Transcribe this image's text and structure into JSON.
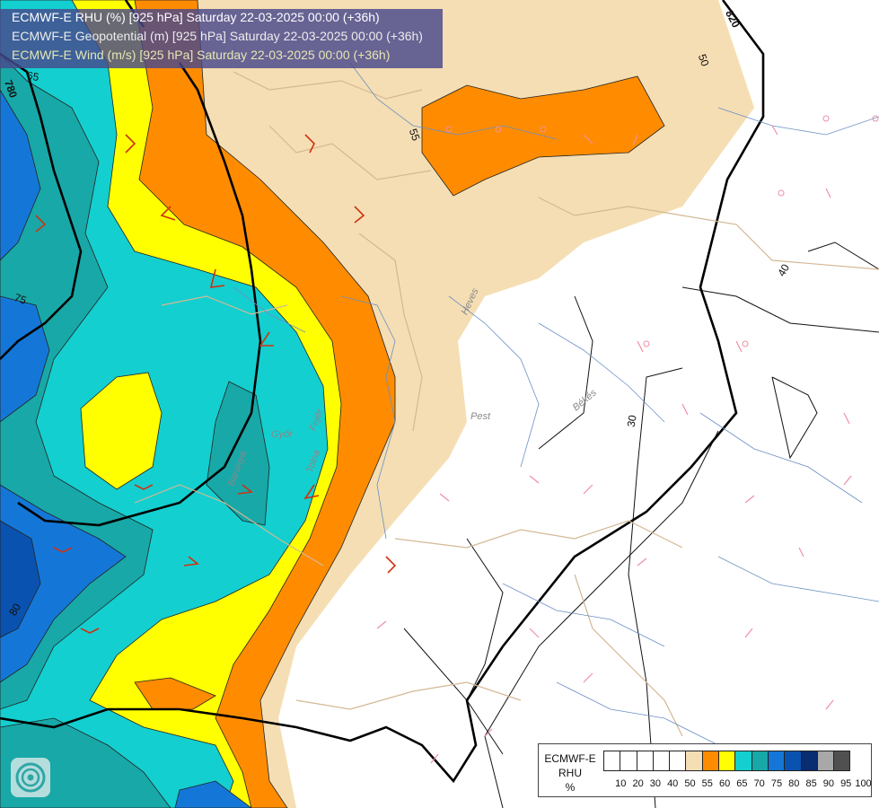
{
  "title_lines": [
    "ECMWF-E RHU (%) [925 hPa] Saturday 22-03-2025 00:00 (+36h)",
    "ECMWF-E Geopotential (m) [925 hPa] Saturday 22-03-2025 00:00 (+36h)",
    "ECMWF-E Wind (m/s) [925 hPa] Saturday 22-03-2025 00:00 (+36h)"
  ],
  "legend": {
    "title_lines": [
      "ECMWF-E",
      "RHU",
      "%"
    ],
    "levels": [
      "10",
      "20",
      "30",
      "40",
      "50",
      "55",
      "60",
      "65",
      "70",
      "75",
      "80",
      "85",
      "90",
      "95",
      "100"
    ],
    "colors": [
      "#ffffff",
      "#ffffff",
      "#ffffff",
      "#ffffff",
      "#ffffff",
      "#f5deb3",
      "#ff8c00",
      "#ffff00",
      "#14cfcf",
      "#18a8a8",
      "#1477d8",
      "#0a52b0",
      "#082d70",
      "#a8a8a8",
      "#505050"
    ]
  },
  "map_labels": [
    "Heves",
    "Pest",
    "Békés",
    "Fejér",
    "Győr",
    "Tolna",
    "Baranya"
  ],
  "contour_labels": [
    "820",
    "780",
    "80",
    "75",
    "65",
    "55",
    "50",
    "40",
    "30"
  ],
  "logo_icon": "ecmwf-logo-icon"
}
